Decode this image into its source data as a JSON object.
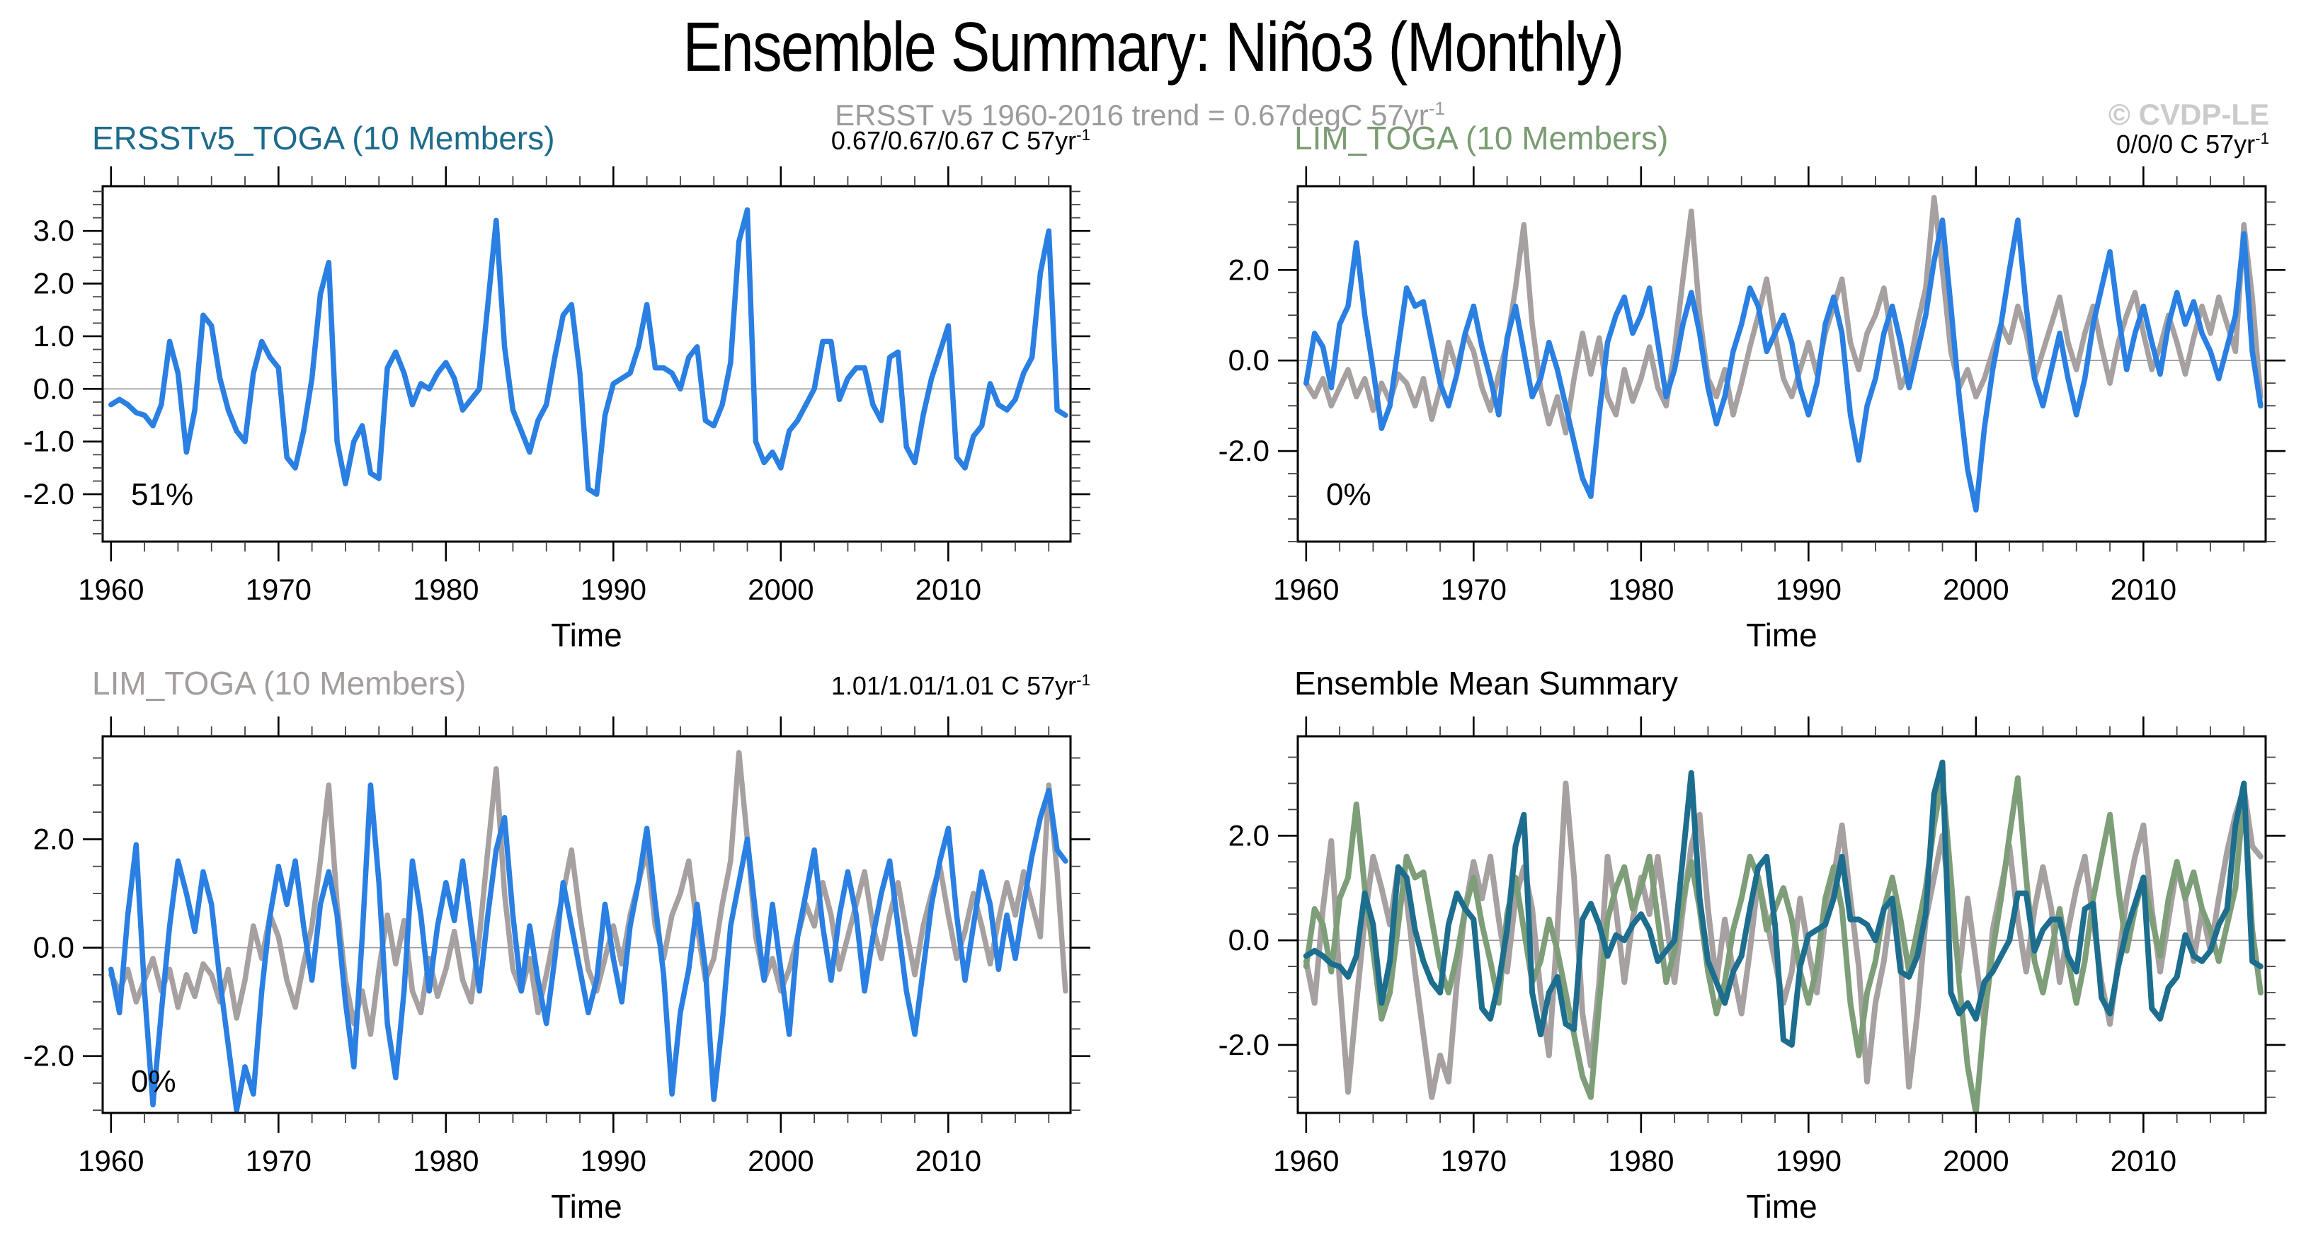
{
  "page": {
    "title": "Ensemble Summary: Niño3 (Monthly)",
    "subtitle_text": "ERSST v5 1960-2016 trend = 0.67degC 57yr",
    "subtitle_sup": "-1",
    "copyright": "© CVDP-LE"
  },
  "colors": {
    "observed_blue": "#2a7fe3",
    "ensemble_gray": "#a6a0a0",
    "mean_teal": "#1d6e8e",
    "mean_green": "#7d9e78",
    "zero_line": "#999999",
    "axis_black": "#000000",
    "title_teal": "#1e6b8c",
    "title_green": "#7a9c72",
    "title_gray": "#a49d9d",
    "subtitle_gray": "#9b9b9b",
    "copyright_gray": "#cbcbcb"
  },
  "chart_data": {
    "type": "line",
    "x_axis": {
      "label": "Time",
      "start_year": 1960,
      "step_years": 0.5,
      "xlim": [
        1959.5,
        2017.3
      ],
      "tick_values": [
        1960,
        1970,
        1980,
        1990,
        2000,
        2010
      ],
      "tick_labels": [
        "1960",
        "1970",
        "1980",
        "1990",
        "2000",
        "2010"
      ],
      "minor_step": 2
    },
    "series_values": {
      "obs": [
        -0.3,
        -0.2,
        -0.3,
        -0.45,
        -0.5,
        -0.7,
        -0.3,
        0.9,
        0.3,
        -1.2,
        -0.4,
        1.4,
        1.2,
        0.2,
        -0.4,
        -0.8,
        -1.0,
        0.3,
        0.9,
        0.6,
        0.4,
        -1.3,
        -1.5,
        -0.8,
        0.2,
        1.8,
        2.4,
        -1.0,
        -1.8,
        -1.0,
        -0.7,
        -1.6,
        -1.7,
        0.4,
        0.7,
        0.3,
        -0.3,
        0.1,
        0.0,
        0.3,
        0.5,
        0.2,
        -0.4,
        -0.2,
        0.0,
        1.6,
        3.2,
        0.8,
        -0.4,
        -0.8,
        -1.2,
        -0.6,
        -0.3,
        0.6,
        1.4,
        1.6,
        0.3,
        -1.9,
        -2.0,
        -0.5,
        0.1,
        0.2,
        0.3,
        0.8,
        1.6,
        0.4,
        0.4,
        0.3,
        0.0,
        0.6,
        0.8,
        -0.6,
        -0.7,
        -0.3,
        0.5,
        2.8,
        3.4,
        -1.0,
        -1.4,
        -1.2,
        -1.5,
        -0.8,
        -0.6,
        -0.3,
        0.0,
        0.9,
        0.9,
        -0.2,
        0.2,
        0.4,
        0.4,
        -0.3,
        -0.6,
        0.6,
        0.7,
        -1.1,
        -1.4,
        -0.5,
        0.2,
        0.7,
        1.2,
        -1.3,
        -1.5,
        -0.9,
        -0.7,
        0.1,
        -0.3,
        -0.4,
        -0.2,
        0.3,
        0.6,
        2.2,
        3.0,
        -0.4,
        -0.5
      ],
      "lim1": [
        -0.5,
        0.6,
        0.3,
        -0.6,
        0.8,
        1.2,
        2.6,
        1.0,
        -0.2,
        -1.5,
        -1.0,
        0.3,
        1.6,
        1.2,
        1.3,
        0.4,
        -0.5,
        -1.0,
        -0.3,
        0.6,
        1.2,
        0.3,
        -0.4,
        -1.2,
        0.5,
        1.2,
        0.2,
        -0.8,
        -0.4,
        0.4,
        -0.2,
        -1.0,
        -1.8,
        -2.6,
        -3.0,
        -1.2,
        0.4,
        1.0,
        1.4,
        0.6,
        1.0,
        1.6,
        0.4,
        -0.8,
        -0.2,
        0.8,
        1.5,
        0.6,
        -0.6,
        -1.4,
        -0.8,
        0.2,
        0.8,
        1.6,
        1.2,
        0.2,
        0.6,
        1.0,
        0.4,
        -0.6,
        -1.2,
        -0.5,
        0.8,
        1.4,
        0.6,
        -1.2,
        -2.2,
        -1.0,
        -0.4,
        0.6,
        1.2,
        0.4,
        -0.6,
        0.2,
        1.0,
        2.2,
        3.1,
        1.2,
        -0.8,
        -2.4,
        -3.3,
        -1.5,
        -0.2,
        0.8,
        2.0,
        3.1,
        1.2,
        -0.4,
        -1.0,
        -0.2,
        0.6,
        -0.4,
        -1.2,
        -0.4,
        0.8,
        1.6,
        2.4,
        1.0,
        -0.2,
        0.6,
        1.2,
        0.4,
        -0.3,
        0.8,
        1.5,
        0.8,
        1.3,
        0.6,
        0.2,
        -0.4,
        0.3,
        1.0,
        2.8,
        0.2,
        -1.0
      ],
      "lim2": [
        -0.4,
        -1.2,
        0.6,
        1.9,
        -0.8,
        -2.9,
        -1.2,
        0.4,
        1.6,
        1.0,
        0.3,
        1.4,
        0.8,
        -0.6,
        -1.8,
        -3.0,
        -2.2,
        -2.7,
        -0.8,
        0.6,
        1.5,
        0.8,
        1.6,
        0.4,
        -0.6,
        0.8,
        1.4,
        0.6,
        -1.0,
        -2.2,
        0.2,
        3.0,
        1.2,
        -1.4,
        -2.4,
        -0.8,
        1.6,
        0.6,
        -0.8,
        0.4,
        1.2,
        0.5,
        1.6,
        0.4,
        -0.8,
        0.6,
        1.8,
        2.4,
        0.6,
        -0.8,
        0.4,
        -0.6,
        -1.4,
        -0.2,
        1.2,
        0.4,
        -0.4,
        -1.2,
        -0.6,
        0.8,
        -0.2,
        -1.0,
        0.4,
        1.2,
        2.2,
        0.8,
        -0.5,
        -2.7,
        -1.2,
        -0.4,
        0.8,
        -0.4,
        -2.8,
        -1.4,
        0.4,
        1.2,
        2.0,
        0.6,
        -0.6,
        0.8,
        -0.4,
        -1.6,
        0.2,
        1.0,
        1.8,
        0.4,
        -0.6,
        0.6,
        1.4,
        0.6,
        -0.8,
        0.2,
        1.0,
        1.6,
        0.4,
        -0.8,
        -1.6,
        -0.4,
        0.8,
        1.6,
        2.2,
        0.6,
        -0.6,
        0.4,
        1.4,
        0.8,
        -0.4,
        0.6,
        -0.2,
        0.8,
        1.7,
        2.4,
        2.9,
        1.8,
        1.6
      ],
      "graymean": [
        -0.5,
        -0.8,
        -0.4,
        -1.0,
        -0.6,
        -0.2,
        -0.8,
        -0.4,
        -1.1,
        -0.5,
        -0.9,
        -0.3,
        -0.5,
        -1.0,
        -0.4,
        -1.3,
        -0.6,
        0.4,
        -0.2,
        0.6,
        0.2,
        -0.6,
        -1.1,
        -0.3,
        0.4,
        1.6,
        3.0,
        0.8,
        -0.6,
        -1.4,
        -0.8,
        -1.6,
        -0.4,
        0.6,
        -0.3,
        0.5,
        -0.8,
        -1.2,
        -0.2,
        -0.9,
        -0.4,
        0.3,
        -0.6,
        -1.0,
        0.2,
        1.8,
        3.3,
        1.0,
        -0.4,
        -0.8,
        -0.2,
        -1.2,
        -0.5,
        0.3,
        1.0,
        1.8,
        0.6,
        -0.4,
        -0.8,
        -0.2,
        0.4,
        -0.3,
        0.6,
        1.2,
        1.8,
        0.4,
        -0.2,
        0.6,
        1.0,
        1.6,
        0.4,
        -0.6,
        -0.2,
        0.8,
        1.6,
        3.6,
        2.0,
        0.2,
        -0.6,
        -0.2,
        -0.8,
        -0.4,
        0.2,
        0.8,
        0.4,
        1.2,
        0.6,
        -0.4,
        0.2,
        0.8,
        1.4,
        0.4,
        -0.2,
        0.6,
        1.2,
        0.3,
        -0.5,
        0.4,
        1.0,
        1.5,
        0.6,
        -0.2,
        0.3,
        1.0,
        0.4,
        -0.3,
        0.5,
        1.2,
        0.6,
        1.4,
        0.8,
        0.2,
        3.0,
        1.4,
        -0.8
      ]
    },
    "panels": [
      {
        "id": "p1",
        "title": "ERSSTv5_TOGA (10 Members)",
        "title_color": "#1e6b8c",
        "trend_text": "0.67/0.67/0.67 C 57yr",
        "trend_sup": "-1",
        "annotation": "51%",
        "xlabel": "Time",
        "ylim": [
          -2.9,
          3.85
        ],
        "y_ticks": {
          "values": [
            3,
            2,
            1,
            0,
            -1,
            -2
          ],
          "labels": [
            "3.0",
            "2.0",
            "1.0",
            "0.0",
            "-1.0",
            "-2.0"
          ],
          "minor_step": 0.25
        },
        "series": [
          {
            "name": "ERSSTv5-observed",
            "key": "obs",
            "color": "#2a7fe3",
            "width": 7.5
          }
        ]
      },
      {
        "id": "p2",
        "title": "LIM_TOGA (10 Members)",
        "title_color": "#7a9c72",
        "trend_text": "0/0/0 C 57yr",
        "trend_sup": "-1",
        "annotation": "0%",
        "xlabel": "Time",
        "ylim": [
          -4.0,
          3.85
        ],
        "y_ticks": {
          "values": [
            2,
            0,
            -2
          ],
          "labels": [
            "2.0",
            "0.0",
            "-2.0"
          ],
          "minor_step": 0.5
        },
        "series": [
          {
            "name": "LIM-ensemble-gray",
            "key": "graymean",
            "color": "#a6a0a0",
            "width": 7.5
          },
          {
            "name": "LIM1-member-blue",
            "key": "lim1",
            "color": "#2a7fe3",
            "width": 7.5
          }
        ]
      },
      {
        "id": "p3",
        "title": "LIM_TOGA (10 Members)",
        "title_color": "#a49d9d",
        "trend_text": "1.01/1.01/1.01 C 57yr",
        "trend_sup": "-1",
        "annotation": "0%",
        "xlabel": "Time",
        "ylim": [
          -3.05,
          3.9
        ],
        "y_ticks": {
          "values": [
            2,
            0,
            -2
          ],
          "labels": [
            "2.0",
            "0.0",
            "-2.0"
          ],
          "minor_step": 0.5
        },
        "series": [
          {
            "name": "LIM-ensemble-gray",
            "key": "graymean",
            "color": "#a6a0a0",
            "width": 7.5
          },
          {
            "name": "LIM2-member-blue",
            "key": "lim2",
            "color": "#2a7fe3",
            "width": 7.5
          }
        ]
      },
      {
        "id": "p4",
        "title": "Ensemble Mean Summary",
        "title_color": "#000000",
        "trend_text": "",
        "trend_sup": "",
        "annotation": "",
        "xlabel": "Time",
        "ylim": [
          -3.3,
          3.9
        ],
        "y_ticks": {
          "values": [
            2,
            0,
            -2
          ],
          "labels": [
            "2.0",
            "0.0",
            "-2.0"
          ],
          "minor_step": 0.5
        },
        "series": [
          {
            "name": "LIM2-mean-gray",
            "key": "lim2",
            "color": "#a6a0a0",
            "width": 8
          },
          {
            "name": "LIM1-mean-green",
            "key": "lim1",
            "color": "#7d9e78",
            "width": 8
          },
          {
            "name": "ERSSTv5-mean-teal",
            "key": "obs",
            "color": "#1d6e8e",
            "width": 8
          }
        ]
      }
    ]
  }
}
